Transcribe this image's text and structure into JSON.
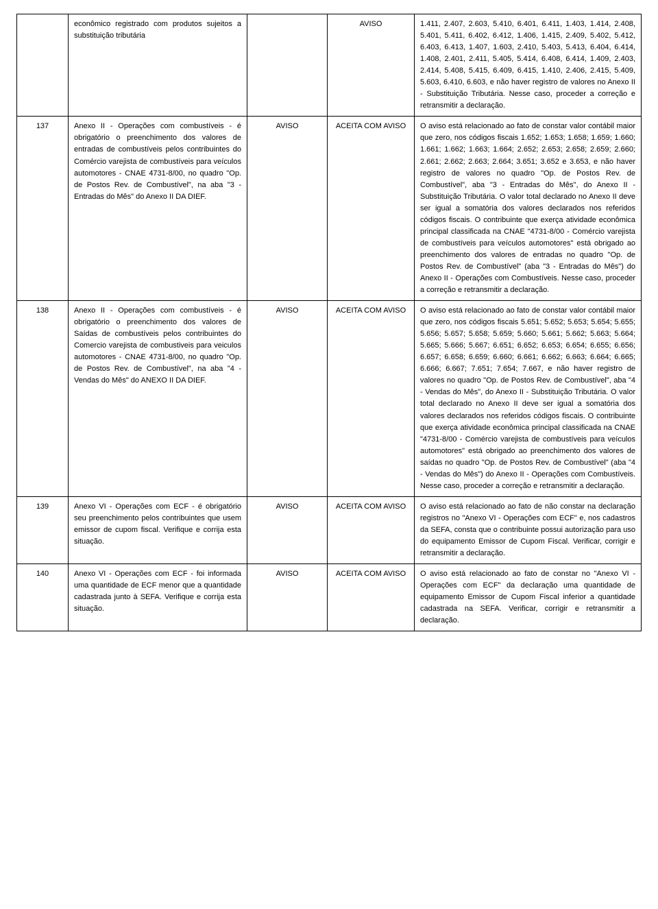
{
  "rows": [
    {
      "id": "",
      "desc": "econômico registrado com produtos sujeitos a substituição tributária",
      "c3": "",
      "c4": "AVISO",
      "det": "1.411, 2.407, 2.603, 5.410, 6.401, 6.411, 1.403, 1.414, 2.408, 5.401, 5.411, 6.402, 6.412, 1.406, 1.415, 2.409, 5.402, 5.412, 6.403, 6.413, 1.407, 1.603, 2.410, 5.403, 5.413, 6.404, 6.414, 1.408, 2.401, 2.411, 5.405, 5.414, 6.408, 6.414, 1.409, 2.403, 2.414, 5.408, 5.415, 6.409, 6.415, 1.410, 2.406, 2.415, 5.409, 5.603, 6.410, 6.603, e não haver registro de valores no Anexo II - Substituição Tributária. Nesse caso, proceder a correção e retransmitir a declaração."
    },
    {
      "id": "137",
      "desc": "Anexo II - Operações com combustíveis - é obrigatório o preenchimento dos valores de entradas de combustíveis pelos contribuintes do Comércio varejista de combustíveis para veículos automotores - CNAE 4731-8/00, no quadro \"Op. de Postos Rev. de Combustível\", na aba \"3 - Entradas do Mês\" do Anexo II DA DIEF.",
      "c3": "AVISO",
      "c4": "ACEITA COM AVISO",
      "det": "O aviso está relacionado ao fato de constar valor contábil maior que zero, nos códigos fiscais 1.652; 1.653; 1.658; 1.659; 1.660; 1.661; 1.662; 1.663; 1.664; 2.652; 2.653; 2.658; 2.659; 2.660; 2.661; 2.662; 2.663; 2.664; 3.651; 3.652 e 3.653, e não haver registro de valores no quadro \"Op. de Postos Rev. de Combustível\", aba \"3 - Entradas do Mês\", do Anexo II - Substituição Tributária. O valor total declarado no Anexo II deve ser igual a somatória dos valores declarados nos referidos códigos fiscais. O contribuinte que exerça atividade econômica principal classificada na CNAE \"4731-8/00 - Comércio varejista de combustíveis para veículos automotores\" está obrigado ao preenchimento dos valores de entradas no quadro \"Op. de Postos Rev. de Combustível\" (aba \"3 - Entradas do Mês\") do Anexo II - Operações com Combustíveis. Nesse caso, proceder a correção e retransmitir a declaração."
    },
    {
      "id": "138",
      "desc": "Anexo II - Operações com combustíveis - é obrigatório o preenchimento dos valores de Saídas de combustíveis pelos contribuintes do Comercio varejista de combustiveis para veiculos automotores - CNAE 4731-8/00, no quadro \"Op. de Postos Rev. de Combustível\", na aba \"4 - Vendas do Mês\" do ANEXO II DA DIEF.",
      "c3": "AVISO",
      "c4": "ACEITA COM AVISO",
      "det": "O aviso está relacionado ao fato de constar valor contábil maior que zero, nos códigos fiscais 5.651; 5.652; 5.653; 5.654; 5.655; 5.656; 5.657; 5.658; 5.659; 5.660; 5.661; 5.662; 5.663; 5.664; 5.665; 5.666; 5.667; 6.651; 6.652; 6.653; 6.654; 6.655; 6.656; 6.657; 6.658; 6.659; 6.660; 6.661; 6.662; 6.663; 6.664; 6.665; 6.666; 6.667; 7.651; 7.654; 7.667, e não haver registro de valores no quadro \"Op. de Postos Rev. de Combustível\", aba \"4 - Vendas do Mês\", do Anexo II - Substituição Tributária. O valor total declarado no Anexo II deve ser igual a somatória dos valores declarados nos referidos códigos fiscais. O contribuinte que exerça atividade econômica principal classificada na CNAE \"4731-8/00 - Comércio varejista de combustíveis para veículos automotores\" está obrigado ao preenchimento dos valores de saídas no quadro \"Op. de Postos Rev. de Combustível\" (aba \"4 - Vendas do Mês\") do Anexo II - Operações com Combustíveis. Nesse caso, proceder a correção e retransmitir a declaração."
    },
    {
      "id": "139",
      "desc": "Anexo VI - Operações com ECF - é obrigatório seu preenchimento pelos contribuintes que usem emissor de cupom fiscal. Verifique e corrija esta situação.",
      "c3": "AVISO",
      "c4": "ACEITA COM AVISO",
      "det": "O aviso está relacionado ao fato de não constar na declaração registros no \"Anexo VI - Operações com ECF\" e, nos cadastros da SEFA, consta que o contribuinte possui autorização para uso do equipamento Emissor de Cupom Fiscal. Verificar, corrigir e retransmitir a declaração."
    },
    {
      "id": "140",
      "desc": "Anexo VI - Operações com ECF - foi informada uma quantidade de ECF menor que a quantidade cadastrada junto à SEFA. Verifique e corrija esta situação.",
      "c3": "AVISO",
      "c4": "ACEITA COM AVISO",
      "det": "O aviso está relacionado ao fato de constar no \"Anexo VI - Operações com ECF\" da declaração uma quantidade de equipamento Emissor de Cupom Fiscal inferior a quantidade cadastrada na SEFA. Verificar, corrigir e retransmitir a declaração."
    }
  ]
}
